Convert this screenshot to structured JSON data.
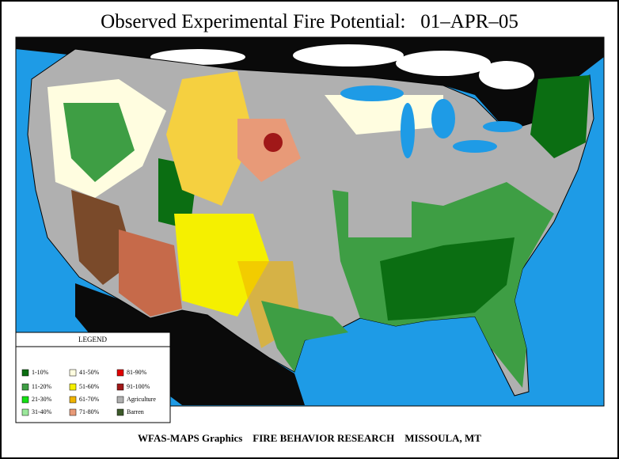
{
  "title": "Observed Experimental Fire Potential:   01–APR–05",
  "legend": {
    "title": "LEGEND",
    "items": [
      {
        "label": "1-10%",
        "color": "#0b6e12"
      },
      {
        "label": "11-20%",
        "color": "#3e9e44"
      },
      {
        "label": "21-30%",
        "color": "#14e014"
      },
      {
        "label": "31-40%",
        "color": "#9be89b"
      },
      {
        "label": "41-50%",
        "color": "#fffde0"
      },
      {
        "label": "51-60%",
        "color": "#f5f000"
      },
      {
        "label": "61-70%",
        "color": "#f0b400"
      },
      {
        "label": "71-80%",
        "color": "#e89a78"
      },
      {
        "label": "81-90%",
        "color": "#e00000"
      },
      {
        "label": "91-100%",
        "color": "#a01818"
      },
      {
        "label": "Agriculture",
        "color": "#b0b0b0"
      },
      {
        "label": "Barren",
        "color": "#3d5a2a"
      }
    ]
  },
  "footer": "WFAS-MAPS Graphics    FIRE BEHAVIOR RESEARCH    MISSOULA, MT"
}
